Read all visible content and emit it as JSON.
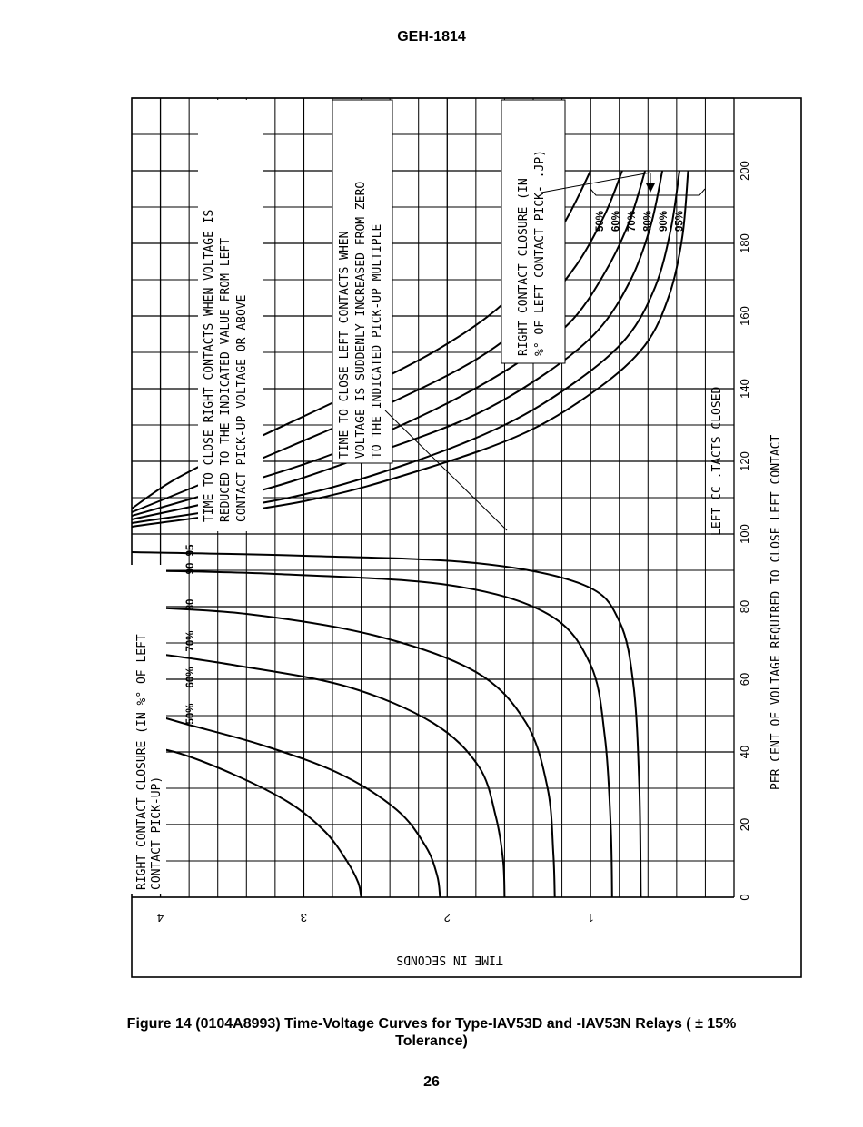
{
  "doc": {
    "header": "GEH-1814",
    "caption_line1": "Figure 14  (0104A8993)  Time-Voltage Curves for Type-IAV53D and -IAV53N Relays ( ± 15%",
    "caption_line2": "Tolerance)",
    "page_number": "26"
  },
  "chart_data": {
    "type": "line",
    "xlabel": "PER CENT OF VOLTAGE REQUIRED TO CLOSE LEFT CONTACT",
    "ylabel": "TIME IN SECONDS",
    "x_ticks": [
      "0",
      "20",
      "40",
      "60",
      "80",
      "100",
      "120",
      "140",
      "160",
      "180",
      "200"
    ],
    "y_ticks": [
      "1",
      "2",
      "3",
      "4"
    ],
    "xlim": [
      0,
      220
    ],
    "ylim": [
      0,
      4.2
    ],
    "grid": true,
    "regions": {
      "left_closed_label": "LEFT CC .TACTS CLOSED"
    },
    "annotations": {
      "right_closure_group": {
        "title_line1": "RIGHT CONTACT CLOSURE (IN %° OF LEFT",
        "title_line2": "CONTACT   PICK-UP)",
        "levels": [
          "50%",
          "60%",
          "70%",
          "80",
          "90",
          "95"
        ]
      },
      "left_closure_group": {
        "title_line1": "RIGHT CONTACT CLOSURE (IN",
        "title_line2": "%° OF LEFT CONTACT PICK- .JP)",
        "levels": [
          "50%",
          "60%",
          "70%",
          "80%",
          "90%",
          "95%"
        ]
      },
      "reduce_note": {
        "line1": "TIME TO CLOSE RIGHT CONTACTS WHEN VOLTAGE IS",
        "line2": "REDUCED TO THE INDICATED VALUE FROM LEFT",
        "line3": "CONTACT PICK-UP VOLTAGE OR ABOVE"
      },
      "increase_note": {
        "line1": "TIME TO CLOSE LEFT CONTACTS WHEN",
        "line2": "VOLTAGE IS SUDDENLY INCREASED FROM ZERO",
        "line3": "TO THE INDICATED PICK-UP MULTIPLE"
      }
    },
    "series_group_below": {
      "name": "Time to close right contacts (voltage reduced)",
      "series": [
        {
          "level": "50%",
          "x": [
            0,
            4,
            10,
            18,
            26,
            34,
            40,
            42
          ],
          "y": [
            2.6,
            2.62,
            2.7,
            2.85,
            3.1,
            3.5,
            3.9,
            4.2
          ]
        },
        {
          "level": "60%",
          "x": [
            0,
            6,
            14,
            24,
            34,
            42,
            48,
            52
          ],
          "y": [
            2.05,
            2.07,
            2.15,
            2.35,
            2.75,
            3.3,
            3.85,
            4.2
          ]
        },
        {
          "level": "70%",
          "x": [
            0,
            10,
            22,
            36,
            48,
            58,
            64,
            68
          ],
          "y": [
            1.6,
            1.61,
            1.66,
            1.78,
            2.1,
            2.7,
            3.5,
            4.2
          ]
        },
        {
          "level": "80%",
          "x": [
            0,
            12,
            30,
            48,
            62,
            72,
            78,
            80
          ],
          "y": [
            1.25,
            1.26,
            1.3,
            1.45,
            1.8,
            2.5,
            3.4,
            4.2
          ]
        },
        {
          "level": "90%",
          "x": [
            0,
            20,
            44,
            64,
            78,
            86,
            89,
            90
          ],
          "y": [
            0.85,
            0.86,
            0.9,
            1.0,
            1.3,
            2.0,
            3.2,
            4.2
          ]
        },
        {
          "level": "95%",
          "x": [
            0,
            30,
            58,
            76,
            86,
            92,
            94,
            95
          ],
          "y": [
            0.65,
            0.66,
            0.7,
            0.8,
            1.05,
            1.8,
            3.0,
            4.2
          ]
        }
      ]
    },
    "series_group_above": {
      "name": "Time to close left contacts (voltage suddenly increased)",
      "series": [
        {
          "level": "50%",
          "x": [
            107,
            115,
            125,
            138,
            150,
            162,
            175,
            188,
            200
          ],
          "y": [
            4.2,
            3.9,
            3.4,
            2.7,
            2.1,
            1.65,
            1.35,
            1.15,
            1.0
          ]
        },
        {
          "level": "60%",
          "x": [
            106,
            114,
            124,
            136,
            148,
            160,
            174,
            188,
            200
          ],
          "y": [
            4.2,
            3.7,
            3.1,
            2.4,
            1.8,
            1.4,
            1.1,
            0.9,
            0.78
          ]
        },
        {
          "level": "70%",
          "x": [
            105,
            113,
            122,
            134,
            146,
            158,
            172,
            186,
            200
          ],
          "y": [
            4.2,
            3.5,
            2.8,
            2.1,
            1.55,
            1.15,
            0.9,
            0.73,
            0.62
          ]
        },
        {
          "level": "80%",
          "x": [
            104,
            112,
            121,
            132,
            144,
            156,
            170,
            185,
            200
          ],
          "y": [
            4.2,
            3.3,
            2.6,
            1.85,
            1.32,
            0.95,
            0.72,
            0.58,
            0.5
          ]
        },
        {
          "level": "90%",
          "x": [
            103,
            110,
            119,
            130,
            142,
            154,
            168,
            184,
            200
          ],
          "y": [
            4.2,
            3.1,
            2.3,
            1.6,
            1.1,
            0.75,
            0.55,
            0.44,
            0.38
          ]
        },
        {
          "level": "95%",
          "x": [
            102,
            109,
            118,
            128,
            140,
            152,
            166,
            182,
            200
          ],
          "y": [
            4.2,
            3.0,
            2.15,
            1.45,
            0.95,
            0.62,
            0.45,
            0.36,
            0.32
          ]
        }
      ]
    },
    "series": []
  }
}
